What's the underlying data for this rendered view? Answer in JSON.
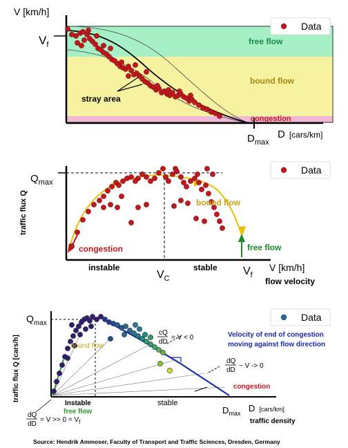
{
  "panel1": {
    "y_label": "V [km/h]",
    "vf": "V",
    "vf_sub": "f",
    "legend": "Data",
    "free_flow": "free flow",
    "bound_flow": "bound flow",
    "congestion": "congestion",
    "stray_area": "stray area",
    "dmax": "D",
    "dmax_sub": "max",
    "x_label_d": "D",
    "x_label_unit": "[cars/km]",
    "colors": {
      "free": "#a6f0c8",
      "bound": "#f7f2a0",
      "cong": "#f2b8d8",
      "dots": "#c0181c"
    }
  },
  "panel2": {
    "y_label": "traffic flux Q",
    "qmax": "Q",
    "qmax_sub": "max",
    "legend": "Data",
    "bound_flow": "bound flow",
    "congestion": "congestion",
    "free_flow": "free flow",
    "instable": "instable",
    "stable": "stable",
    "vc": "V",
    "vc_sub": "C",
    "vf": "V",
    "vf_sub": "f",
    "x_label": "V [km/h]",
    "x_sub_label": "flow velocity"
  },
  "panel3": {
    "y_label": "traffic flux Q [cars/h]",
    "qmax": "Q",
    "qmax_sub": "max",
    "legend": "Data",
    "bound_flow": "bound flow",
    "free_flow": "free flow",
    "congestion": "congestion",
    "instable": "Instable",
    "stable": "stable",
    "note_line1": "Velocity of end of congestion",
    "note_line2": "moving against flow direction",
    "eq1_num": "cQ",
    "eq1_den": "dD",
    "eq1_rest": "= V < 0",
    "eq2_num": "dQ",
    "eq2_den": "dD",
    "eq2_rest": "~ V -> 0",
    "eq3_num": "dQ",
    "eq3_den": "dD",
    "eq3_rest": "= V >> 0 = V",
    "eq3_sub": "f",
    "dmax": "D",
    "dmax_sub": "max",
    "x_label_d": "D",
    "x_label_unit": "[cars/km]",
    "x_sub_label": "traffic density"
  },
  "source": "Source: Hendrik Ammoser, Faculty of Transport and Traffic Sciences, Dresden, Germany"
}
